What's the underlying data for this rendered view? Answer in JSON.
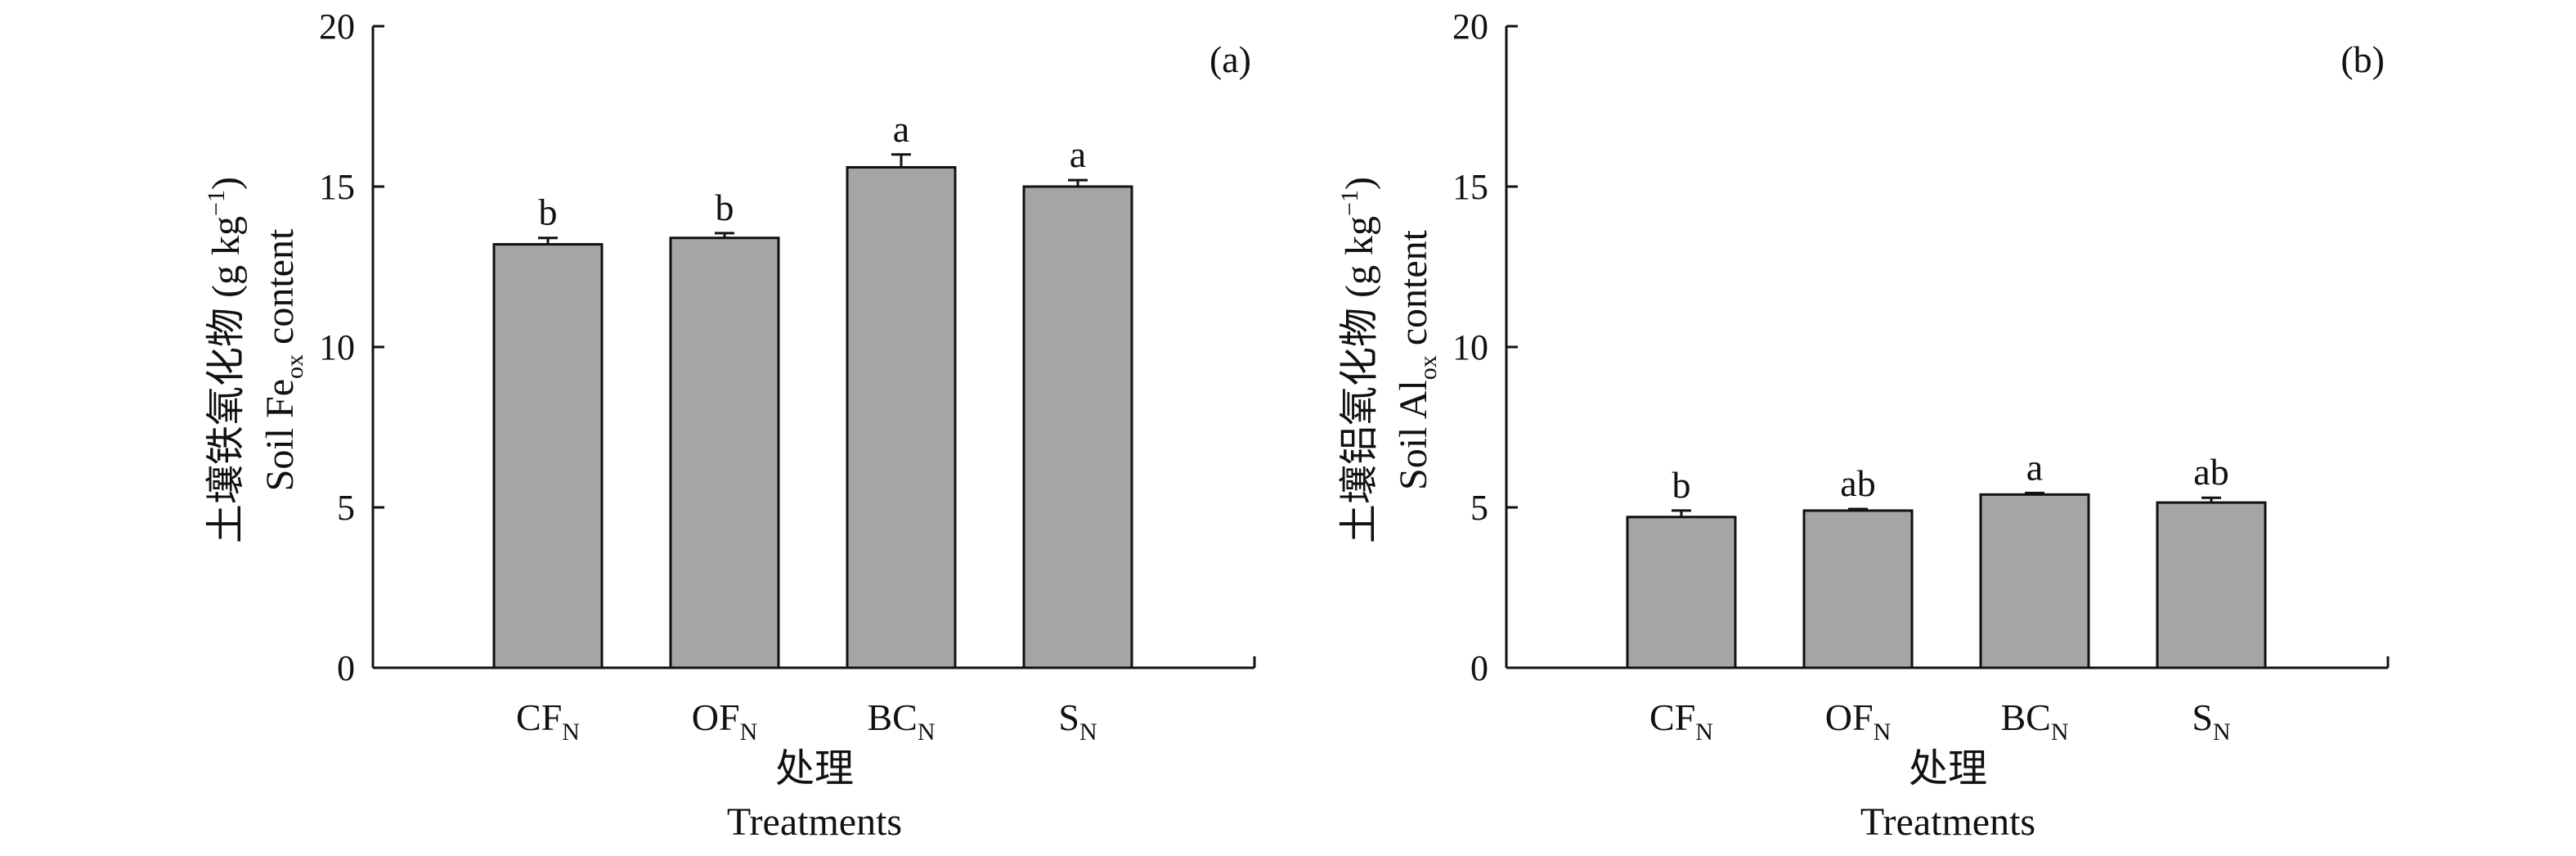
{
  "colors": {
    "bar_fill": "#a6a4a5",
    "axis": "#111111",
    "text": "#111111"
  },
  "chart_data": [
    {
      "type": "bar",
      "panel_label": "(a)",
      "categories": [
        {
          "main": "CF",
          "sub": "N"
        },
        {
          "main": "OF",
          "sub": "N"
        },
        {
          "main": "BC",
          "sub": "N"
        },
        {
          "main": "S",
          "sub": "N"
        }
      ],
      "values": [
        13.2,
        13.4,
        15.6,
        15.0
      ],
      "errors": [
        0.2,
        0.15,
        0.4,
        0.2
      ],
      "significance": [
        "b",
        "b",
        "a",
        "a"
      ],
      "ylim": [
        0,
        20
      ],
      "yticks": [
        0,
        5,
        10,
        15,
        20
      ],
      "ylabel_cn": "土壤铁氧化物 (g kg",
      "ylabel_cn_sup": "−1",
      "ylabel_cn_close": ")",
      "ylabel_en_pre": "Soil Fe",
      "ylabel_en_sub": "ox",
      "ylabel_en_post": " content",
      "xlabel_cn": "处理",
      "xlabel_en": "Treatments"
    },
    {
      "type": "bar",
      "panel_label": "(b)",
      "categories": [
        {
          "main": "CF",
          "sub": "N"
        },
        {
          "main": "OF",
          "sub": "N"
        },
        {
          "main": "BC",
          "sub": "N"
        },
        {
          "main": "S",
          "sub": "N"
        }
      ],
      "values": [
        4.7,
        4.9,
        5.4,
        5.15
      ],
      "errors": [
        0.2,
        0.05,
        0.05,
        0.15
      ],
      "significance": [
        "b",
        "ab",
        "a",
        "ab"
      ],
      "ylim": [
        0,
        20
      ],
      "yticks": [
        0,
        5,
        10,
        15,
        20
      ],
      "ylabel_cn": "土壤铝氧化物 (g kg",
      "ylabel_cn_sup": "−1",
      "ylabel_cn_close": ")",
      "ylabel_en_pre": "Soil Al",
      "ylabel_en_sub": "ox",
      "ylabel_en_post": " content",
      "xlabel_cn": "处理",
      "xlabel_en": "Treatments"
    }
  ]
}
